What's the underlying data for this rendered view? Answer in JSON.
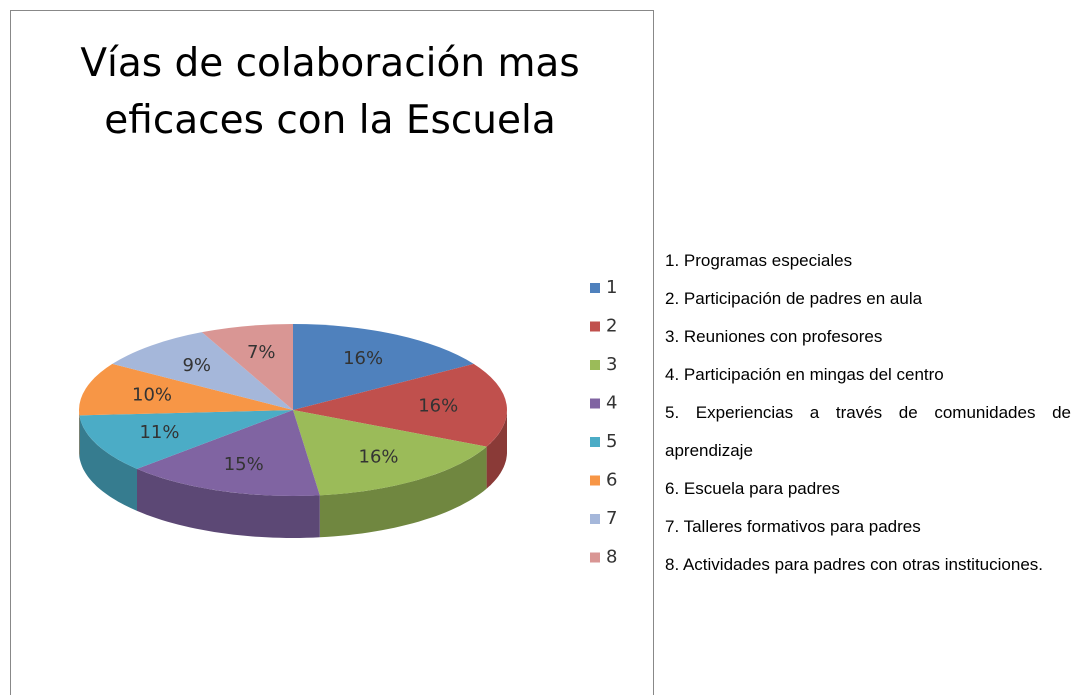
{
  "chart_data": {
    "type": "pie",
    "title": "Vías de colaboración mas eficaces con la Escuela",
    "categories": [
      "1",
      "2",
      "3",
      "4",
      "5",
      "6",
      "7",
      "8"
    ],
    "values": [
      16,
      16,
      16,
      15,
      11,
      10,
      9,
      7
    ],
    "value_labels": [
      "16%",
      "16%",
      "16%",
      "15%",
      "11%",
      "10%",
      "9%",
      "7%"
    ],
    "colors": [
      "#4f81bd",
      "#c0504d",
      "#9bbb59",
      "#8064a2",
      "#4bacc6",
      "#f79646",
      "#a5b7da",
      "#d99694"
    ],
    "legend": "right"
  },
  "notes": [
    "1. Programas especiales",
    "2. Participación de padres en aula",
    "3. Reuniones con profesores",
    "4. Participación en mingas del centro",
    "5. Experiencias a través de comunidades de aprendizaje",
    "6. Escuela para padres",
    "7. Talleres formativos para padres",
    "8. Actividades para padres con otras instituciones."
  ]
}
